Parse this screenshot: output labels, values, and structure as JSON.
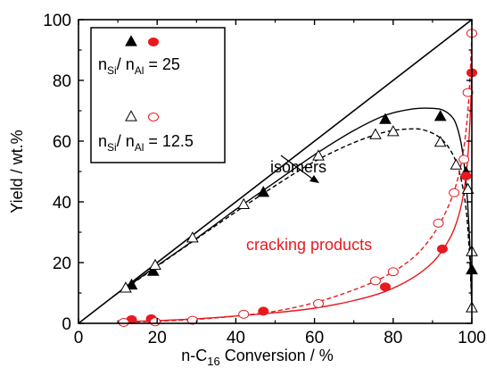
{
  "chart_data": {
    "type": "scatter",
    "xlabel": {
      "prefix": "n-C",
      "sub": "16",
      "suffix": " Conversion  /  %"
    },
    "ylabel": "Yield  /  wt.%",
    "xlim": [
      0,
      100
    ],
    "ylim": [
      0,
      100
    ],
    "x_ticks": [
      0,
      20,
      40,
      60,
      80,
      100
    ],
    "y_ticks": [
      0,
      20,
      40,
      60,
      80,
      100
    ],
    "x_tick_labels": [
      "0",
      "20",
      "40",
      "60",
      "80",
      "100"
    ],
    "y_tick_labels": [
      "0",
      "20",
      "40",
      "60",
      "80",
      "100"
    ],
    "grid": false,
    "legend_position": "top-left",
    "legend": {
      "entries": [
        {
          "label_a": "n",
          "sub_a": "Si",
          "label_b": "/ n",
          "sub_b": "Al",
          "label_c": " = 25",
          "style": "filled"
        },
        {
          "label_a": "n",
          "sub_a": "Si",
          "label_b": "/ n",
          "sub_b": "Al",
          "label_c": " = 12.5",
          "style": "open"
        }
      ]
    },
    "annotations": [
      {
        "text": "isomers",
        "color": "#000000"
      },
      {
        "text": "cracking products",
        "color": "#e8191f"
      }
    ],
    "colors": {
      "isomers": "#000000",
      "cracking": "#e8191f"
    },
    "diagonal": {
      "from": [
        0,
        0
      ],
      "to": [
        100,
        100
      ]
    },
    "series": [
      {
        "kind": "isomers",
        "marker": "triangle",
        "filled": true,
        "ratio": "25",
        "points": [
          [
            13.5,
            12.5
          ],
          [
            19,
            17
          ],
          [
            47,
            43
          ],
          [
            78,
            67
          ],
          [
            92,
            68
          ],
          [
            98.5,
            49.5
          ],
          [
            100,
            17.5
          ]
        ]
      },
      {
        "kind": "isomers",
        "marker": "triangle",
        "filled": false,
        "ratio": "12.5",
        "points": [
          [
            12,
            11.5
          ],
          [
            19.5,
            19
          ],
          [
            29,
            28
          ],
          [
            42,
            39
          ],
          [
            61,
            55
          ],
          [
            75.5,
            62
          ],
          [
            80,
            63
          ],
          [
            92,
            59.5
          ],
          [
            96,
            52
          ],
          [
            99,
            44
          ],
          [
            100,
            23.5
          ],
          [
            100,
            5
          ]
        ]
      },
      {
        "kind": "cracking",
        "marker": "circle",
        "filled": true,
        "ratio": "25",
        "points": [
          [
            13.5,
            1.2
          ],
          [
            18.5,
            1.5
          ],
          [
            47,
            4
          ],
          [
            78,
            12
          ],
          [
            92.5,
            24.5
          ],
          [
            98.5,
            48.5
          ],
          [
            100,
            82.5
          ]
        ]
      },
      {
        "kind": "cracking",
        "marker": "circle",
        "filled": false,
        "ratio": "12.5",
        "points": [
          [
            11.5,
            0.3
          ],
          [
            19.5,
            0.5
          ],
          [
            29,
            1
          ],
          [
            42,
            3
          ],
          [
            61,
            6.5
          ],
          [
            75.5,
            14
          ],
          [
            80,
            17
          ],
          [
            91.5,
            33
          ],
          [
            95.5,
            43
          ],
          [
            98,
            54
          ],
          [
            99,
            76
          ],
          [
            100,
            95.5
          ]
        ]
      }
    ],
    "fit_curves": [
      {
        "kind": "isomers",
        "ratio": "25",
        "dashed": false,
        "points": [
          [
            13,
            12.6
          ],
          [
            20,
            19
          ],
          [
            30,
            28
          ],
          [
            40,
            37.5
          ],
          [
            50,
            46.5
          ],
          [
            60,
            55.5
          ],
          [
            70,
            63.5
          ],
          [
            78,
            68.5
          ],
          [
            85,
            70.6
          ],
          [
            90,
            70.8
          ],
          [
            93,
            70
          ],
          [
            95.5,
            67
          ],
          [
            97,
            61
          ],
          [
            98,
            53
          ],
          [
            98.8,
            42
          ],
          [
            99.4,
            28
          ],
          [
            99.8,
            14
          ],
          [
            100,
            5
          ]
        ]
      },
      {
        "kind": "isomers",
        "ratio": "12.5",
        "dashed": true,
        "points": [
          [
            12,
            11.5
          ],
          [
            20,
            18.8
          ],
          [
            30,
            27.8
          ],
          [
            40,
            36.7
          ],
          [
            50,
            45.3
          ],
          [
            60,
            53.3
          ],
          [
            70,
            59.5
          ],
          [
            78,
            63
          ],
          [
            84,
            64
          ],
          [
            88,
            63.6
          ],
          [
            92,
            61
          ],
          [
            95,
            56
          ],
          [
            97,
            49
          ],
          [
            98.5,
            38
          ],
          [
            99.3,
            25
          ],
          [
            99.8,
            12
          ],
          [
            100,
            4
          ]
        ]
      },
      {
        "kind": "cracking",
        "ratio": "25",
        "dashed": false,
        "points": [
          [
            13,
            0.6
          ],
          [
            20,
            0.9
          ],
          [
            30,
            1.5
          ],
          [
            40,
            2.4
          ],
          [
            50,
            3.5
          ],
          [
            60,
            5
          ],
          [
            70,
            7.5
          ],
          [
            78,
            10.5
          ],
          [
            85,
            15
          ],
          [
            90,
            20
          ],
          [
            93,
            25
          ],
          [
            95.5,
            31
          ],
          [
            97.5,
            40
          ],
          [
            98.8,
            52
          ],
          [
            99.5,
            66
          ],
          [
            99.9,
            79
          ],
          [
            100,
            84
          ]
        ]
      },
      {
        "kind": "cracking",
        "ratio": "12.5",
        "dashed": true,
        "points": [
          [
            11,
            0.3
          ],
          [
            20,
            0.7
          ],
          [
            30,
            1.3
          ],
          [
            40,
            2.4
          ],
          [
            50,
            4
          ],
          [
            60,
            6.8
          ],
          [
            70,
            11
          ],
          [
            78,
            15.5
          ],
          [
            84,
            20.5
          ],
          [
            88,
            25.5
          ],
          [
            91.5,
            32
          ],
          [
            94.5,
            40
          ],
          [
            96.5,
            48
          ],
          [
            98,
            58
          ],
          [
            99,
            70
          ],
          [
            99.6,
            83
          ],
          [
            100,
            95
          ]
        ]
      }
    ]
  }
}
